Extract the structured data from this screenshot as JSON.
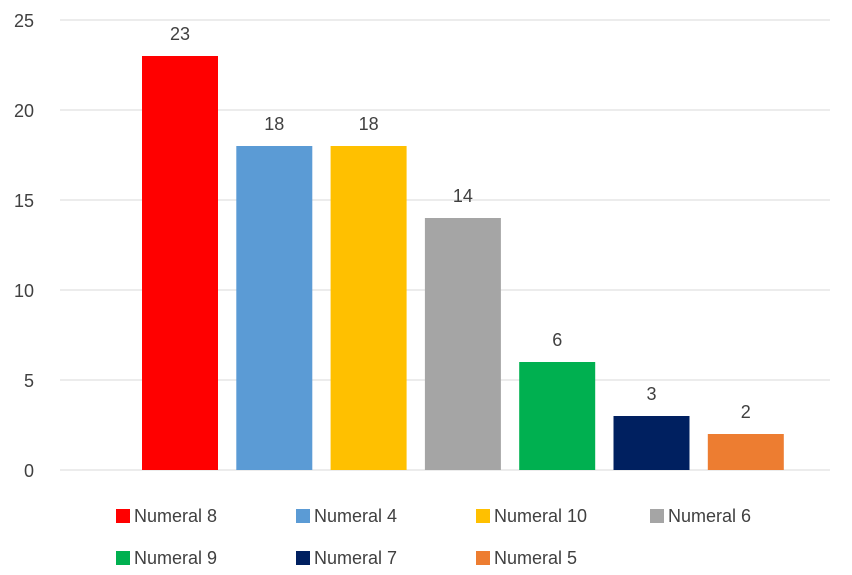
{
  "chart_data": {
    "type": "bar",
    "title": "",
    "xlabel": "",
    "ylabel": "",
    "ylim": [
      0,
      25
    ],
    "yticks": [
      0,
      5,
      10,
      15,
      20,
      25
    ],
    "grid": true,
    "legend_position": "bottom",
    "categories": [
      "Numeral 8",
      "Numeral 4",
      "Numeral 10",
      "Numeral 6",
      "Numeral 9",
      "Numeral 7",
      "Numeral 5"
    ],
    "series": [
      {
        "values": [
          23,
          18,
          18,
          14,
          6,
          3,
          2
        ],
        "colors": [
          "#FF0000",
          "#5B9BD5",
          "#FFC000",
          "#A5A5A5",
          "#00B050",
          "#002060",
          "#ED7D31"
        ]
      }
    ],
    "data_labels": [
      "23",
      "18",
      "18",
      "14",
      "6",
      "3",
      "2"
    ]
  },
  "colors": {
    "gridline": "#D9D9D9",
    "text": "#404040"
  }
}
